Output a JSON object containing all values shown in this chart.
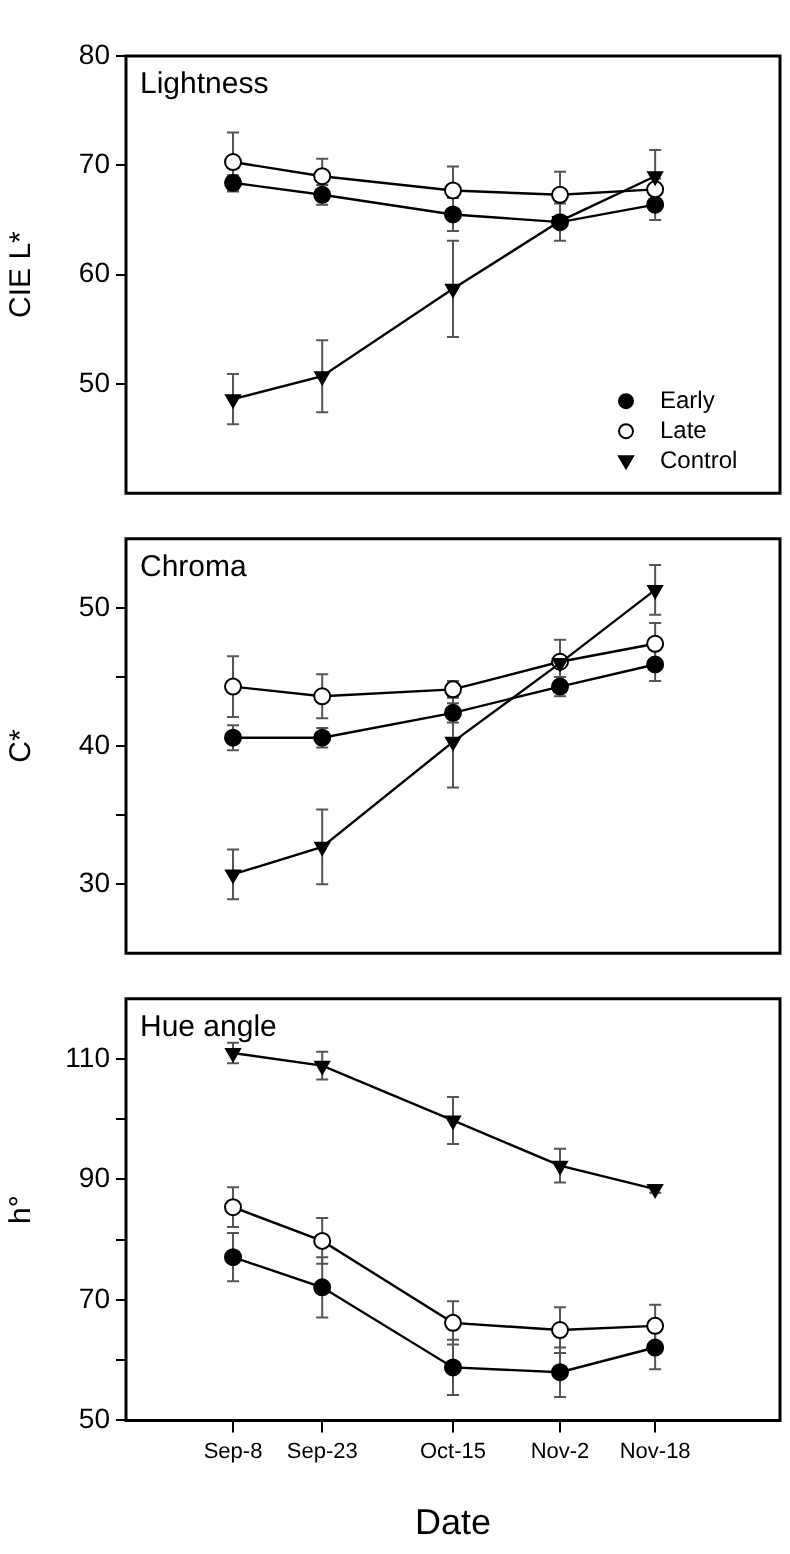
{
  "chart_data": [
    {
      "type": "line",
      "title": "Lightness",
      "ylabel": "CIE L*",
      "x": [
        "--09-08",
        "--09-23",
        "--10-15",
        "--11-02",
        "--11-18"
      ],
      "xlim": [
        "--08-21",
        "--12-09"
      ],
      "ylim": [
        40,
        80
      ],
      "yticks": [
        50,
        60,
        70,
        80
      ],
      "tick_labels": "y",
      "legend": "bottom right",
      "series": [
        {
          "name": "Early",
          "color": "#000000",
          "marker": "circle",
          "values": [
            68.4,
            67.3,
            65.5,
            64.8,
            66.4
          ],
          "errors": [
            0.7,
            0.9,
            1.5,
            1.7,
            1.4
          ]
        },
        {
          "name": "Late",
          "color": "#ffffff",
          "marker": "circle",
          "values": [
            70.3,
            69.0,
            67.7,
            67.3,
            67.8
          ],
          "errors": [
            2.7,
            1.6,
            2.2,
            2.1,
            1.0
          ]
        },
        {
          "name": "Control",
          "color": "#000000",
          "marker": "triangle",
          "values": [
            48.6,
            50.7,
            58.7,
            64.9,
            69.0
          ],
          "errors": [
            2.3,
            3.3,
            4.4,
            null,
            2.4
          ]
        }
      ]
    },
    {
      "type": "line",
      "title": "Chroma",
      "ylabel": "C*",
      "x": [
        "--09-08",
        "--09-23",
        "--10-15",
        "--11-02",
        "--11-18"
      ],
      "xlim": [
        "--08-21",
        "--12-09"
      ],
      "ylim": [
        25,
        55
      ],
      "yticks": [
        30,
        {
          "value": 35,
          "label": null
        },
        40,
        {
          "value": 45,
          "label": null
        },
        50
      ],
      "tick_labels": "y",
      "series": [
        {
          "color": "#000000",
          "marker": "circle",
          "values": [
            40.6,
            40.6,
            42.4,
            44.3,
            45.9
          ],
          "errors": [
            0.9,
            0.7,
            0.7,
            0.7,
            1.2
          ]
        },
        {
          "color": "#ffffff",
          "marker": "circle",
          "values": [
            44.3,
            43.6,
            44.1,
            46.1,
            47.4
          ],
          "errors": [
            2.2,
            1.6,
            0.6,
            1.6,
            1.5
          ]
        },
        {
          "color": "#000000",
          "marker": "triangle",
          "values": [
            30.7,
            32.7,
            40.3,
            46.0,
            51.3
          ],
          "errors": [
            1.8,
            2.7,
            3.3,
            null,
            1.8
          ]
        }
      ]
    },
    {
      "type": "line",
      "title": "Hue angle",
      "ylabel": "h°",
      "xlabel": "Date",
      "x": [
        "--09-08",
        "--09-23",
        "--10-15",
        "--11-02",
        "--11-18"
      ],
      "xlim": [
        "--08-21",
        "--12-09"
      ],
      "xticks": [
        {
          "value": "--09-08",
          "label": "Sep-8"
        },
        {
          "value": "--09-23",
          "label": "Sep-23"
        },
        {
          "value": "--10-15",
          "label": "Oct-15"
        },
        {
          "value": "--11-02",
          "label": "Nov-2"
        },
        {
          "value": "--11-18",
          "label": "Nov-18"
        }
      ],
      "ylim": [
        50,
        120
      ],
      "yticks": [
        50,
        {
          "value": 60,
          "label": null
        },
        70,
        {
          "value": 80,
          "label": null
        },
        90,
        {
          "value": 100,
          "label": null
        },
        110
      ],
      "series": [
        {
          "color": "#000000",
          "marker": "circle",
          "values": [
            77.1,
            72.1,
            58.8,
            58.0,
            62.1
          ],
          "errors": [
            4.0,
            5.0,
            4.6,
            4.1,
            3.6
          ]
        },
        {
          "color": "#ffffff",
          "marker": "circle",
          "values": [
            85.4,
            79.8,
            66.2,
            65.0,
            65.7
          ],
          "errors": [
            3.3,
            3.8,
            3.6,
            3.8,
            3.5
          ]
        },
        {
          "color": "#000000",
          "marker": "triangle",
          "values": [
            111.0,
            108.9,
            99.8,
            92.3,
            88.4
          ],
          "errors": [
            1.7,
            2.3,
            3.9,
            2.8,
            0.6
          ]
        }
      ]
    }
  ]
}
